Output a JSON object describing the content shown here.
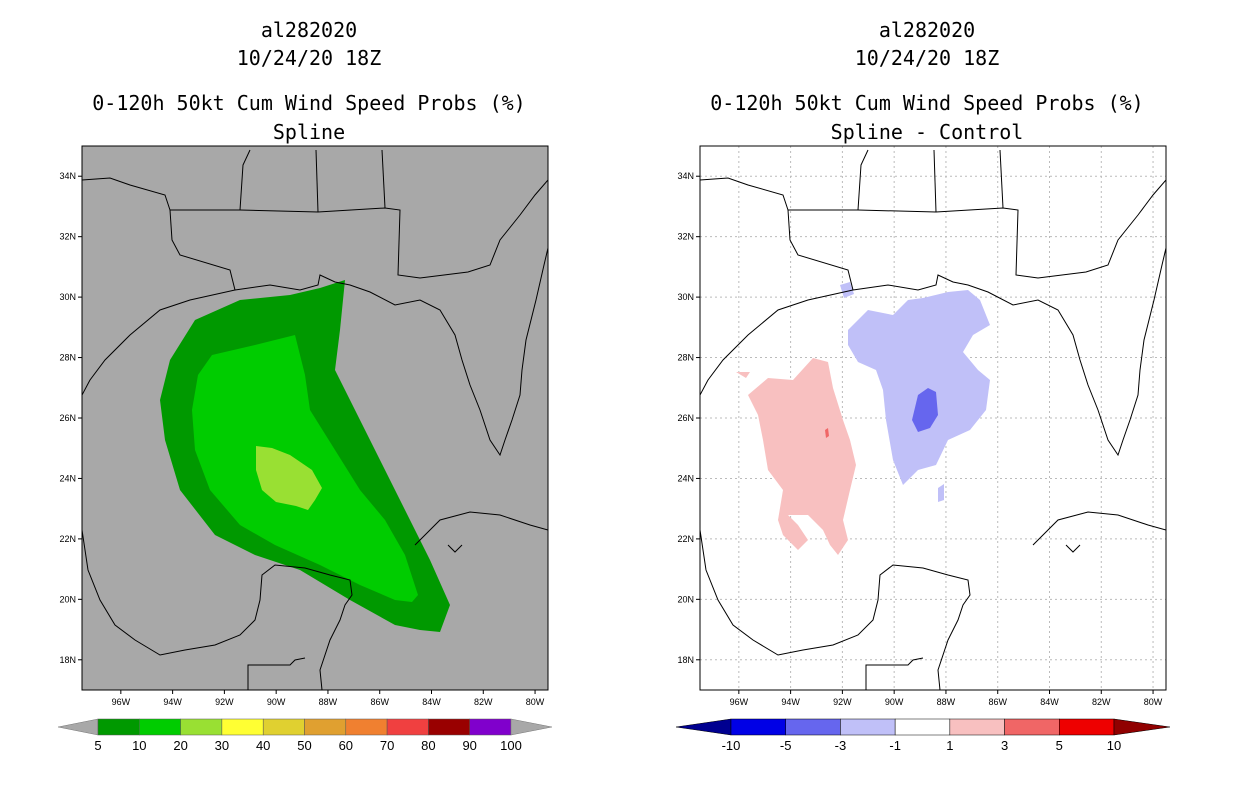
{
  "left": {
    "title_line1": "al282020",
    "title_line2": "10/24/20 18Z",
    "title_line3": "0-120h 50kt Cum Wind Speed Probs (%)",
    "title_line4": "Spline",
    "background_color": "#a8a8a8",
    "lat_labels": [
      "34N",
      "32N",
      "30N",
      "28N",
      "26N",
      "24N",
      "22N",
      "20N",
      "18N"
    ],
    "lon_labels": [
      "96W",
      "94W",
      "92W",
      "90W",
      "88W",
      "86W",
      "84W",
      "82W",
      "80W"
    ],
    "colorbar": {
      "labels": [
        "5",
        "10",
        "20",
        "30",
        "40",
        "50",
        "60",
        "70",
        "80",
        "90",
        "100"
      ],
      "colors": [
        "#009900",
        "#00cc00",
        "#99e033",
        "#ffff33",
        "#e0d030",
        "#e0a030",
        "#f08030",
        "#f04040",
        "#990000",
        "#8000cc"
      ]
    }
  },
  "right": {
    "title_line1": "al282020",
    "title_line2": "10/24/20 18Z",
    "title_line3": "0-120h 50kt Cum Wind Speed Probs (%)",
    "title_line4": "Spline - Control",
    "background_color": "#ffffff",
    "lat_labels": [
      "34N",
      "32N",
      "30N",
      "28N",
      "26N",
      "24N",
      "22N",
      "20N",
      "18N"
    ],
    "lon_labels": [
      "96W",
      "94W",
      "92W",
      "90W",
      "88W",
      "86W",
      "84W",
      "82W",
      "80W"
    ],
    "colorbar": {
      "labels": [
        "-10",
        "-5",
        "-3",
        "-1",
        "1",
        "3",
        "5",
        "10"
      ],
      "colors": [
        "#0000e6",
        "#6666ee",
        "#c0c0f8",
        "#ffffff",
        "#f8c0c0",
        "#f06666",
        "#ee0000"
      ],
      "end_colors": [
        "#000090",
        "#900000"
      ]
    }
  },
  "map_data": {
    "domain": {
      "lon_range": [
        -97.5,
        -79.5
      ],
      "lat_range": [
        17,
        35
      ]
    },
    "grid_lines": true
  }
}
